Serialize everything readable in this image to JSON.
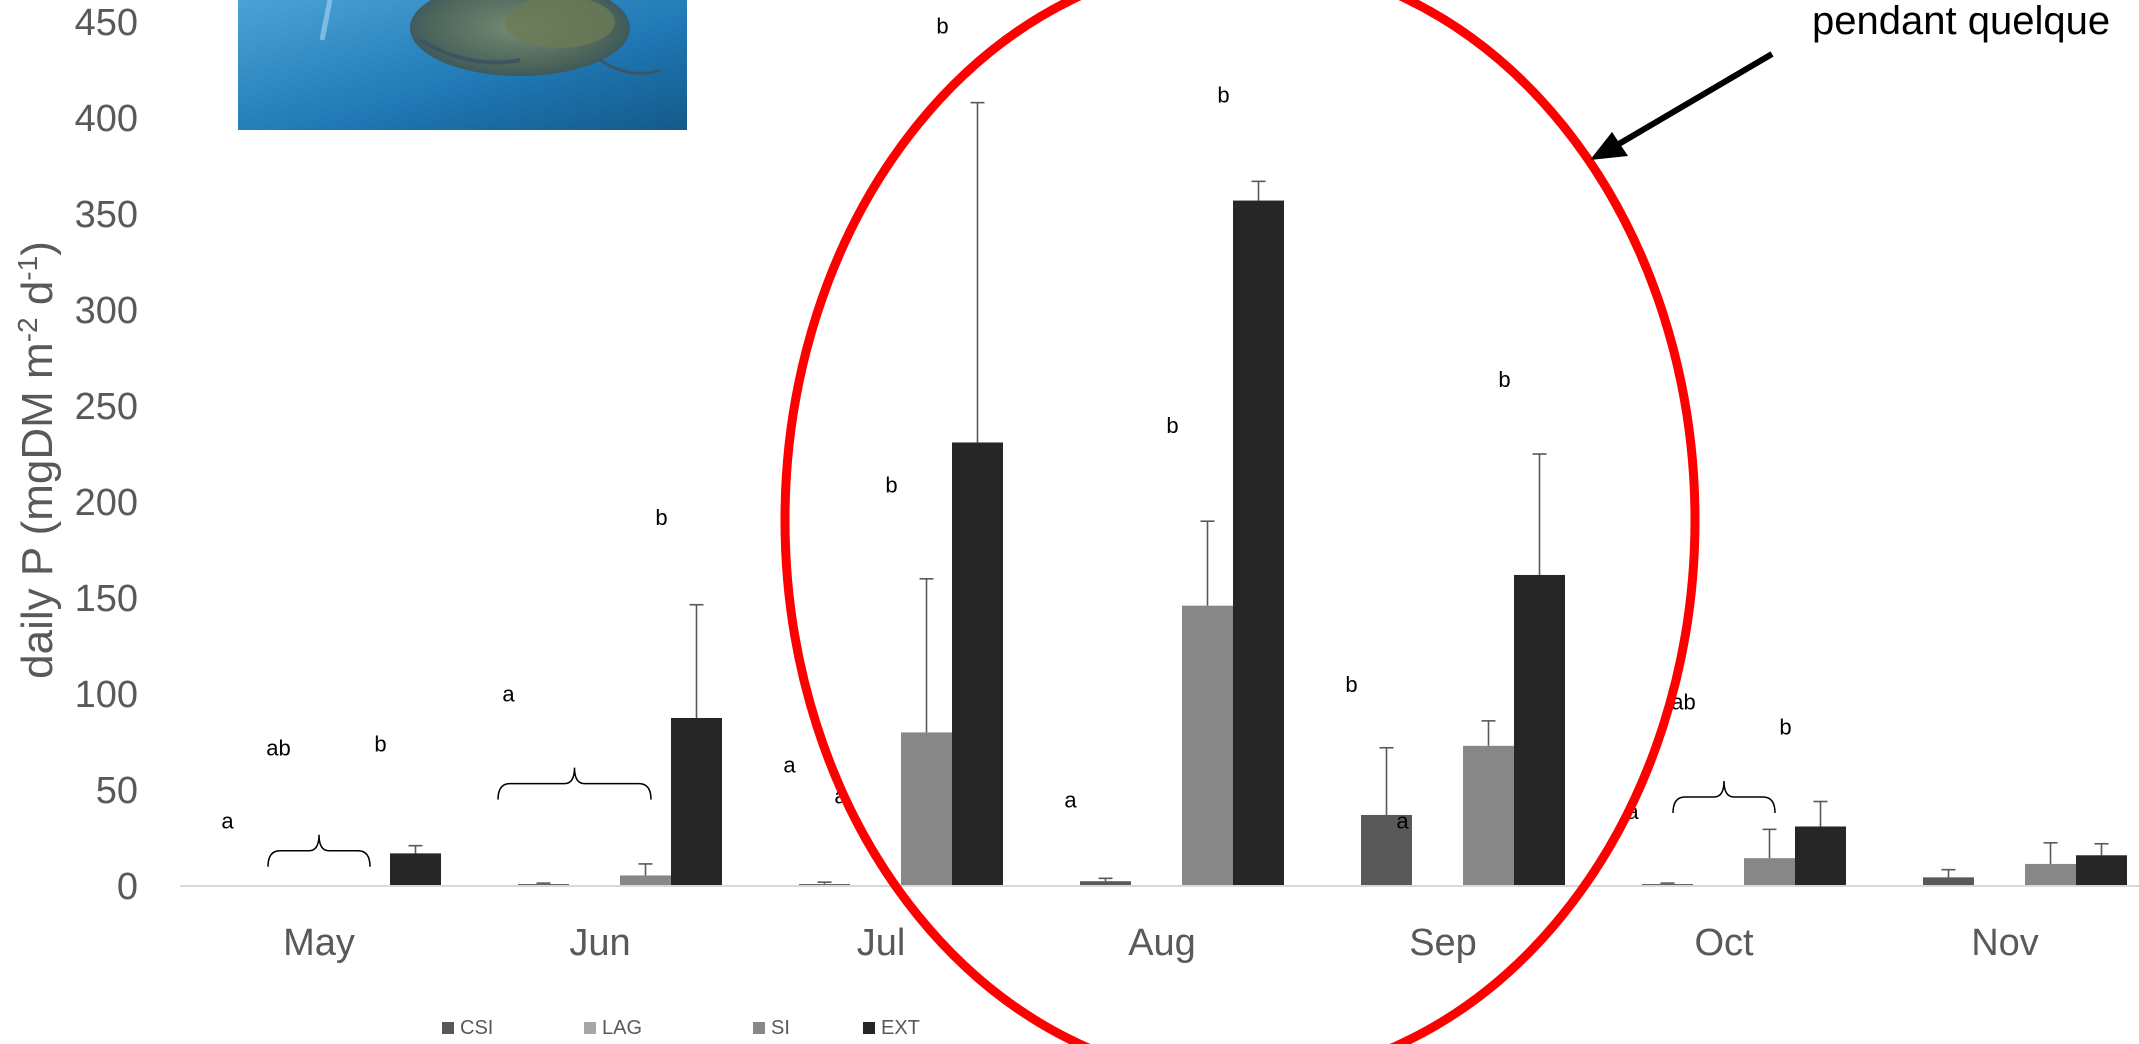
{
  "chart_data": {
    "type": "bar",
    "ylabel": "daily P (mgDM m-2 d-1)",
    "ylabel_parts": {
      "base": "daily P (mgDM m",
      "exp1": "-2",
      "mid": " d",
      "exp2": "-1",
      "end": ")"
    },
    "ylim": [
      0,
      450
    ],
    "yticks": [
      0,
      50,
      100,
      150,
      200,
      250,
      300,
      350,
      400,
      450
    ],
    "categories": [
      "May",
      "Jun",
      "Jul",
      "Aug",
      "Sep",
      "Oct",
      "Nov"
    ],
    "series": [
      {
        "name": "CSI",
        "color": "#595959",
        "values": [
          0.5,
          1,
          1,
          2.5,
          37,
          1,
          4.5
        ],
        "errors": [
          0,
          0.5,
          1,
          1.5,
          35,
          0.5,
          4
        ]
      },
      {
        "name": "LAG",
        "color": "#a6a6a6",
        "values": [
          0.3,
          0.3,
          0.3,
          0.3,
          0.3,
          0.3,
          0.3
        ],
        "errors": [
          0,
          0,
          0,
          0,
          0,
          0,
          0
        ]
      },
      {
        "name": "SI",
        "color": "#878787",
        "values": [
          0.3,
          5.5,
          80,
          146,
          73,
          14.5,
          11.5
        ],
        "errors": [
          0,
          6,
          80,
          44,
          13,
          15,
          11
        ]
      },
      {
        "name": "EXT",
        "color": "#262626",
        "values": [
          17,
          87.5,
          231,
          357,
          162,
          31,
          16
        ],
        "errors": [
          4,
          59,
          177,
          10,
          63,
          13,
          6
        ]
      }
    ],
    "grid": false,
    "legend_position": "bottom",
    "significance_labels": [
      {
        "text": "a",
        "category": 0,
        "series": 0,
        "value": 30
      },
      {
        "text": "ab",
        "category": 0,
        "series": 1,
        "value": 68
      },
      {
        "text": "b",
        "category": 0,
        "series": 3,
        "value": 70
      },
      {
        "text": "a",
        "category": 1,
        "series": 0,
        "value": 96
      },
      {
        "text": "b",
        "category": 1,
        "series": 3,
        "value": 188
      },
      {
        "text": "a",
        "category": 2,
        "series": 0,
        "value": 59
      },
      {
        "text": "a",
        "category": 2,
        "series": 1,
        "value": 43
      },
      {
        "text": "b",
        "category": 2,
        "series": 2,
        "value": 205
      },
      {
        "text": "b",
        "category": 2,
        "series": 3,
        "value": 444
      },
      {
        "text": "a",
        "category": 3,
        "series": 0,
        "value": 41
      },
      {
        "text": "b",
        "category": 3,
        "series": 2,
        "value": 236
      },
      {
        "text": "b",
        "category": 3,
        "series": 3,
        "value": 408
      },
      {
        "text": "b",
        "category": 4,
        "series": 0,
        "value": 101
      },
      {
        "text": "a",
        "category": 4,
        "series": 1,
        "value": 30
      },
      {
        "text": "b",
        "category": 4,
        "series": 3,
        "value": 260
      },
      {
        "text": "a",
        "category": 5,
        "series": 0,
        "value": 35
      },
      {
        "text": "ab",
        "category": 5,
        "series": 1,
        "value": 92
      },
      {
        "text": "b",
        "category": 5,
        "series": 3,
        "value": 79
      }
    ],
    "brackets": [
      {
        "category": 0,
        "from_series": 1,
        "to_series": 2,
        "value": 10
      },
      {
        "category": 1,
        "from_series": 0,
        "to_series": 2,
        "value": 45
      },
      {
        "category": 5,
        "from_series": 1,
        "to_series": 2,
        "value": 38
      }
    ]
  },
  "annotation": {
    "callout_text": "pendant quelque"
  },
  "photo": {
    "description_icon": "zooplankton-photo"
  },
  "colors": {
    "highlight_ellipse": "#ff0000",
    "axis": "#d9d9d9",
    "errorbar": "#595959"
  }
}
